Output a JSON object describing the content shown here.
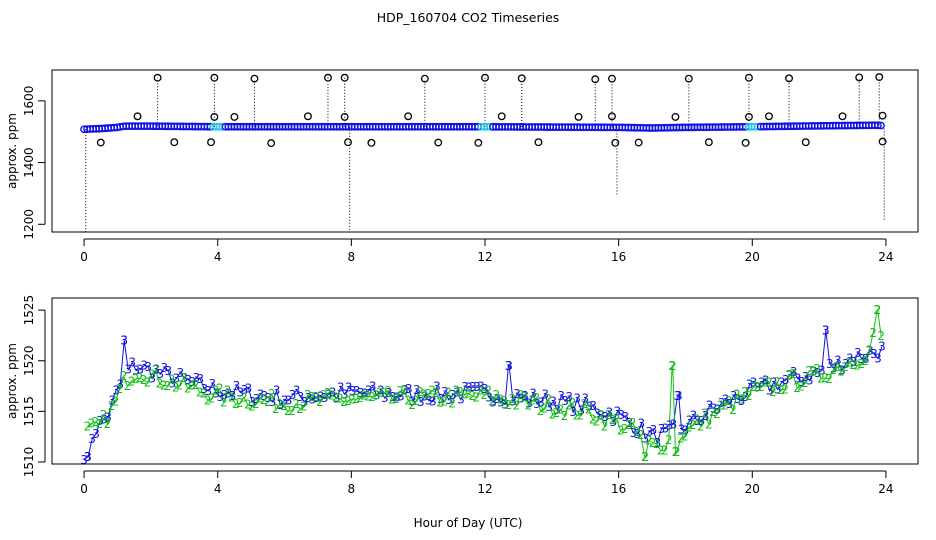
{
  "chart_data": [
    {
      "type": "scatter",
      "title": "HDP_160704  CO2 Timeseries",
      "xlabel": "",
      "ylabel": "approx. ppm",
      "xlim": [
        -0.96,
        24.96
      ],
      "ylim": [
        1175,
        1700
      ],
      "xticks": [
        0,
        4,
        8,
        12,
        16,
        20,
        24
      ],
      "xtick_labels": [
        "0",
        "4",
        "8",
        "12",
        "16",
        "20",
        "24"
      ],
      "yticks": [
        1200,
        1400,
        1600
      ],
      "ytick_labels": [
        "1200",
        "1400",
        "1600"
      ],
      "colors": {
        "main": "#1010e0",
        "highlight": "#20c8e0",
        "outlier": "#000000"
      },
      "baseline": [
        [
          0.0,
          1508
        ],
        [
          0.5,
          1510
        ],
        [
          1.0,
          1514
        ],
        [
          1.2,
          1518
        ],
        [
          2.0,
          1518
        ],
        [
          4.0,
          1516
        ],
        [
          8.0,
          1516
        ],
        [
          12.0,
          1516
        ],
        [
          16.0,
          1514
        ],
        [
          17.0,
          1512
        ],
        [
          18.0,
          1514
        ],
        [
          20.0,
          1516
        ],
        [
          22.0,
          1519
        ],
        [
          23.7,
          1521
        ],
        [
          23.9,
          1520
        ]
      ],
      "high_outliers": [
        [
          2.2,
          1675
        ],
        [
          3.9,
          1675
        ],
        [
          5.1,
          1672
        ],
        [
          7.3,
          1675
        ],
        [
          7.8,
          1675
        ],
        [
          10.2,
          1672
        ],
        [
          12.0,
          1675
        ],
        [
          13.1,
          1673
        ],
        [
          15.3,
          1670
        ],
        [
          15.8,
          1672
        ],
        [
          18.1,
          1672
        ],
        [
          19.9,
          1675
        ],
        [
          21.1,
          1673
        ],
        [
          23.2,
          1676
        ],
        [
          23.8,
          1677
        ]
      ],
      "mid_outliers": [
        [
          1.6,
          1550
        ],
        [
          3.9,
          1548
        ],
        [
          4.5,
          1548
        ],
        [
          6.7,
          1550
        ],
        [
          7.8,
          1548
        ],
        [
          9.7,
          1550
        ],
        [
          12.5,
          1550
        ],
        [
          14.8,
          1548
        ],
        [
          15.8,
          1550
        ],
        [
          17.7,
          1548
        ],
        [
          19.9,
          1548
        ],
        [
          20.5,
          1550
        ],
        [
          22.7,
          1550
        ],
        [
          23.9,
          1552
        ]
      ],
      "low_outliers": [
        [
          0.5,
          1465
        ],
        [
          2.7,
          1466
        ],
        [
          3.8,
          1466
        ],
        [
          5.6,
          1463
        ],
        [
          7.9,
          1466
        ],
        [
          8.6,
          1464
        ],
        [
          10.6,
          1465
        ],
        [
          11.8,
          1464
        ],
        [
          13.6,
          1466
        ],
        [
          15.9,
          1464
        ],
        [
          16.6,
          1465
        ],
        [
          18.7,
          1466
        ],
        [
          19.8,
          1464
        ],
        [
          21.6,
          1466
        ],
        [
          23.9,
          1468
        ]
      ],
      "dips": [
        [
          0.05,
          1175
        ],
        [
          7.95,
          1175
        ],
        [
          15.95,
          1290
        ],
        [
          23.95,
          1210
        ]
      ]
    },
    {
      "type": "line",
      "title": "",
      "xlabel": "Hour of Day (UTC)",
      "ylabel": "approx. ppm",
      "xlim": [
        -0.96,
        24.96
      ],
      "ylim": [
        1509.8,
        1526.2
      ],
      "xticks": [
        0,
        4,
        8,
        12,
        16,
        20,
        24
      ],
      "xtick_labels": [
        "0",
        "4",
        "8",
        "12",
        "16",
        "20",
        "24"
      ],
      "yticks": [
        1510,
        1515,
        1520,
        1525
      ],
      "ytick_labels": [
        "1510",
        "1515",
        "1520",
        "1525"
      ],
      "series": [
        {
          "name": "3",
          "label": "3",
          "color": "#1010e0",
          "trend": [
            [
              0.0,
              1511.0
            ],
            [
              0.3,
              1513.0
            ],
            [
              0.7,
              1514.5
            ],
            [
              1.0,
              1517.0
            ],
            [
              1.2,
              1518.5
            ],
            [
              1.5,
              1519.5
            ],
            [
              2.0,
              1519.0
            ],
            [
              3.0,
              1518.0
            ],
            [
              4.0,
              1517.0
            ],
            [
              6.0,
              1516.3
            ],
            [
              8.0,
              1516.8
            ],
            [
              10.0,
              1516.6
            ],
            [
              12.0,
              1516.8
            ],
            [
              13.0,
              1516.3
            ],
            [
              14.0,
              1516.0
            ],
            [
              15.0,
              1515.5
            ],
            [
              16.0,
              1514.5
            ],
            [
              16.5,
              1513.5
            ],
            [
              17.0,
              1512.5
            ],
            [
              17.5,
              1512.8
            ],
            [
              18.0,
              1513.5
            ],
            [
              19.0,
              1515.5
            ],
            [
              20.0,
              1517.0
            ],
            [
              21.0,
              1518.0
            ],
            [
              22.0,
              1518.8
            ],
            [
              23.0,
              1520.3
            ],
            [
              23.9,
              1521.0
            ]
          ],
          "spikes": [
            [
              1.2,
              1522.0
            ],
            [
              22.2,
              1523.0
            ],
            [
              12.7,
              1519.5
            ],
            [
              17.8,
              1516.5
            ],
            [
              0.1,
              1510.5
            ]
          ]
        },
        {
          "name": "2",
          "label": "2",
          "color": "#10c010",
          "trend": [
            [
              0.1,
              1513.0
            ],
            [
              0.5,
              1513.5
            ],
            [
              0.9,
              1515.5
            ],
            [
              1.2,
              1518.0
            ],
            [
              1.6,
              1519.0
            ],
            [
              2.0,
              1518.5
            ],
            [
              3.0,
              1517.5
            ],
            [
              4.0,
              1516.5
            ],
            [
              6.0,
              1515.8
            ],
            [
              8.0,
              1516.2
            ],
            [
              10.0,
              1516.3
            ],
            [
              12.0,
              1516.5
            ],
            [
              13.0,
              1516.0
            ],
            [
              14.0,
              1515.5
            ],
            [
              15.0,
              1515.0
            ],
            [
              16.0,
              1513.8
            ],
            [
              16.5,
              1513.0
            ],
            [
              17.0,
              1511.5
            ],
            [
              17.5,
              1512.0
            ],
            [
              18.0,
              1513.0
            ],
            [
              19.0,
              1515.0
            ],
            [
              20.0,
              1516.8
            ],
            [
              21.0,
              1517.8
            ],
            [
              22.0,
              1518.5
            ],
            [
              23.0,
              1520.0
            ],
            [
              23.5,
              1520.8
            ],
            [
              23.75,
              1525.0
            ],
            [
              23.9,
              1521.0
            ]
          ],
          "spikes": [
            [
              17.6,
              1519.5
            ],
            [
              17.7,
              1511.0
            ],
            [
              16.8,
              1510.5
            ],
            [
              23.75,
              1525.0
            ]
          ]
        }
      ]
    }
  ]
}
